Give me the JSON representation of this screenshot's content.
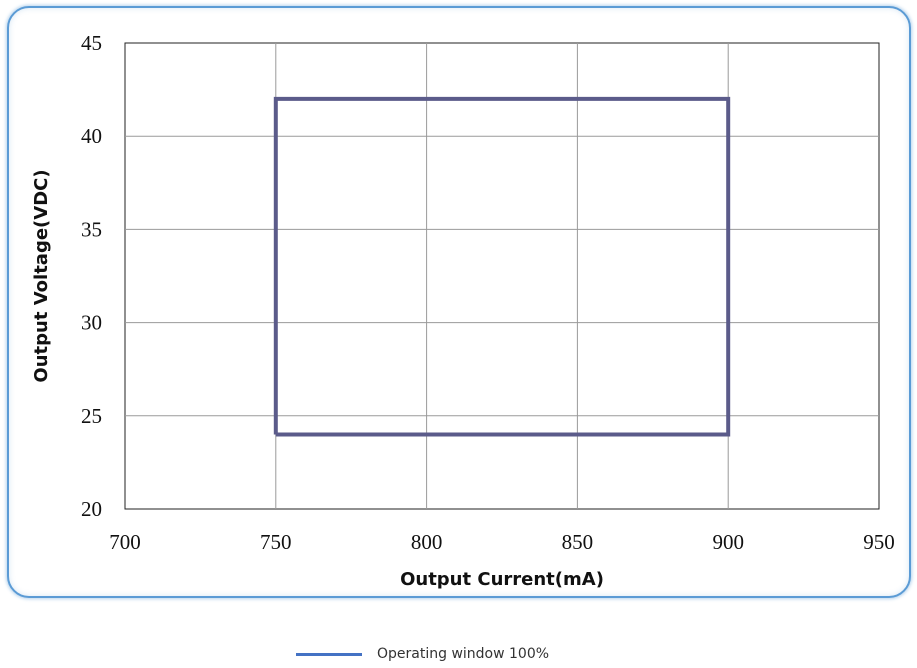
{
  "chart_data": {
    "type": "line",
    "title": "",
    "xlabel": "Output Current(mA)",
    "ylabel": "Output Voltage(VDC)",
    "xlim": [
      700,
      950
    ],
    "ylim": [
      20,
      45
    ],
    "x_ticks": [
      700,
      750,
      800,
      850,
      900,
      950
    ],
    "y_ticks": [
      20,
      25,
      30,
      35,
      40,
      45
    ],
    "grid": true,
    "legend_position": "bottom",
    "series": [
      {
        "name": "Operating window 100%",
        "color": "#5b5b8a",
        "legend_color": "#4472c4",
        "points": [
          {
            "x": 750,
            "y": 24
          },
          {
            "x": 900,
            "y": 24
          },
          {
            "x": 900,
            "y": 42
          },
          {
            "x": 750,
            "y": 42
          },
          {
            "x": 750,
            "y": 24
          }
        ]
      }
    ]
  }
}
